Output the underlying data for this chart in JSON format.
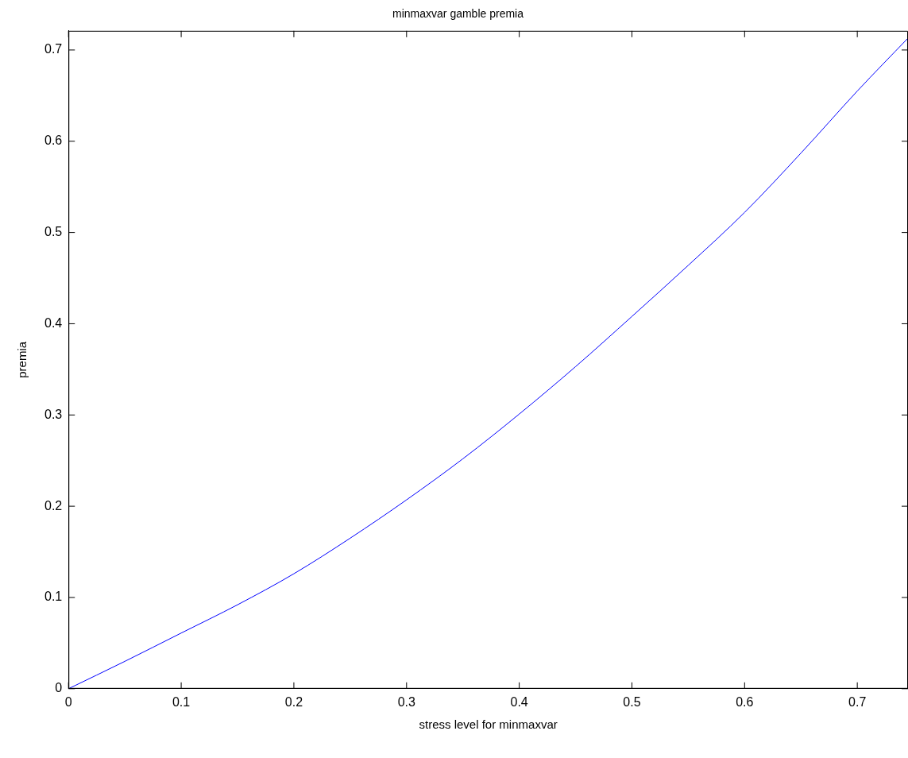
{
  "chart_data": {
    "type": "line",
    "title": "minmaxvar gamble premia",
    "xlabel": "stress level for minmaxvar",
    "ylabel": "premia",
    "x": [
      0,
      0.05,
      0.1,
      0.15,
      0.2,
      0.25,
      0.3,
      0.35,
      0.4,
      0.45,
      0.5,
      0.55,
      0.6,
      0.65,
      0.7,
      0.745
    ],
    "series": [
      {
        "color": "#0000ff",
        "values": [
          0,
          0.03,
          0.061,
          0.092,
          0.126,
          0.165,
          0.207,
          0.252,
          0.301,
          0.353,
          0.408,
          0.464,
          0.522,
          0.587,
          0.655,
          0.713
        ]
      }
    ],
    "xlim": [
      0,
      0.745
    ],
    "ylim": [
      0,
      0.721
    ],
    "xticks": [
      0,
      0.1,
      0.2,
      0.3,
      0.4,
      0.5,
      0.6,
      0.7
    ],
    "yticks": [
      0,
      0.1,
      0.2,
      0.3,
      0.4,
      0.5,
      0.6,
      0.7
    ],
    "grid": false,
    "legend": false,
    "marker": "none",
    "line_style": "solid"
  }
}
